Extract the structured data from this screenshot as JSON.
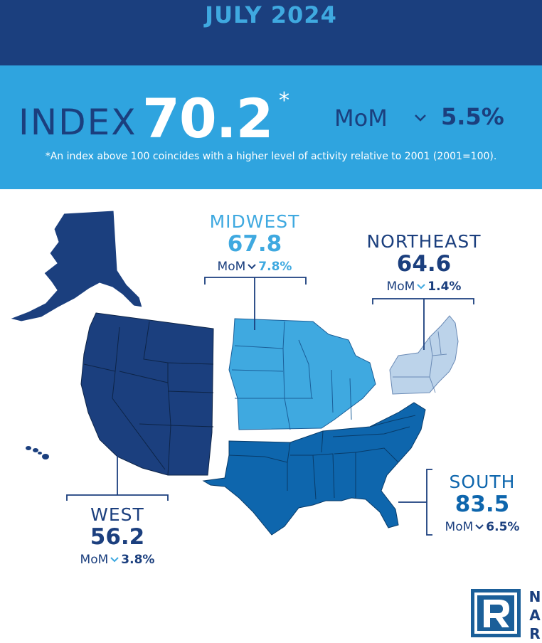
{
  "header": {
    "month": "JULY 2024"
  },
  "index": {
    "label": "INDEX",
    "value": "70.2",
    "asterisk": "*",
    "mom_label": "MoM",
    "mom_value": "5.5%",
    "mom_direction": "down",
    "footnote": "*An index above 100 coincides with a higher level of activity relative to 2001 (2001=100)."
  },
  "regions": {
    "midwest": {
      "name": "MIDWEST",
      "value": "67.8",
      "mom_label": "MoM",
      "mom_value": "7.8%",
      "mom_direction": "down",
      "color": "#3fa9e0"
    },
    "northeast": {
      "name": "NORTHEAST",
      "value": "64.6",
      "mom_label": "MoM",
      "mom_value": "1.4%",
      "mom_direction": "down",
      "color": "#bcd3ea"
    },
    "west": {
      "name": "WEST",
      "value": "56.2",
      "mom_label": "MoM",
      "mom_value": "3.8%",
      "mom_direction": "down",
      "color": "#1b3f7e"
    },
    "south": {
      "name": "SOUTH",
      "value": "83.5",
      "mom_label": "MoM",
      "mom_value": "6.5%",
      "mom_direction": "down",
      "color": "#0e66ad"
    }
  },
  "logo": {
    "letters": [
      "N",
      "A",
      "R"
    ],
    "icon": "realtor-r-logo"
  },
  "colors": {
    "navy": "#1b3f7e",
    "sky": "#2fa4df"
  }
}
